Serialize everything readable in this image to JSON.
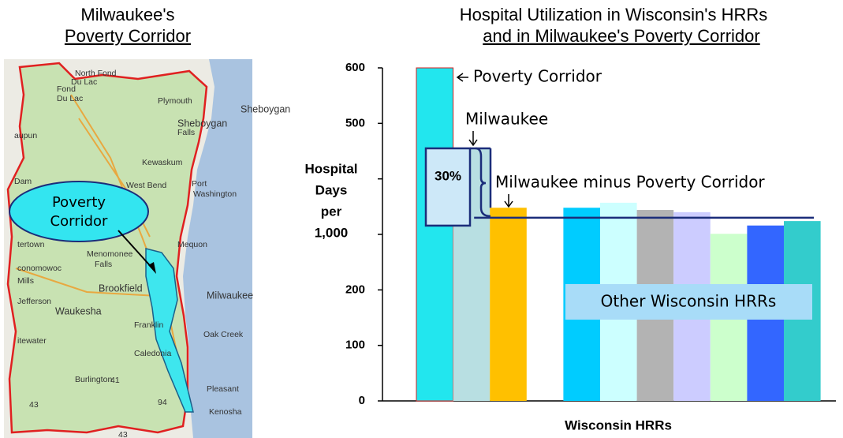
{
  "left_panel": {
    "title_line1": "Milwaukee's",
    "title_line2": "Poverty Corridor",
    "map": {
      "callout": [
        "Poverty",
        "Corridor"
      ],
      "labels": [
        "North Fond",
        "Du Lac",
        "Fond",
        "Du Lac",
        "Plymouth",
        "Sheboygan",
        "Sheboygan",
        "Falls",
        "aupun",
        "Kewaskum",
        "West Bend",
        "Port",
        "Washington",
        "Dam",
        "Mequon",
        "tertown",
        "Menomonee",
        "Falls",
        "conomowoc",
        "Mills",
        "Brookfield",
        "Milwaukee",
        "Jefferson",
        "Waukesha",
        "Franklin",
        "Oak Creek",
        "itewater",
        "Caledonia",
        "Burlington",
        "Pleasant",
        "Kenosha",
        "41",
        "94",
        "43",
        "43"
      ]
    }
  },
  "chart_data": {
    "type": "bar",
    "title": "Hospital Utilization in Wisconsin's HRRs",
    "subtitle": "and in Milwaukee's Poverty Corridor",
    "y_label": [
      "Hospital",
      "Days",
      "per",
      "1,000"
    ],
    "x_label": "Wisconsin HRRs",
    "categories": [
      null,
      null,
      null,
      null,
      null,
      null,
      null,
      null,
      null,
      null
    ],
    "values": [
      600,
      455,
      348,
      348,
      357,
      344,
      340,
      301,
      316,
      324
    ],
    "colors": [
      "#22e6ee",
      "#b8dfe2",
      "#ffc000",
      "#00ccff",
      "#ccffff",
      "#b3b3b3",
      "#ccccff",
      "#ccffcc",
      "#3366ff",
      "#33cccc"
    ],
    "ylim": [
      0,
      600
    ],
    "yticks": [
      0,
      100,
      200,
      500,
      600
    ],
    "unlabeled_yticks": [
      300,
      400
    ],
    "reference_line": 330,
    "annotations": {
      "poverty_corridor": "Poverty Corridor",
      "milwaukee": "Milwaukee",
      "milwaukee_minus": "Milwaukee minus Poverty Corridor",
      "difference": "30%",
      "others": "Other Wisconsin HRRs"
    }
  }
}
